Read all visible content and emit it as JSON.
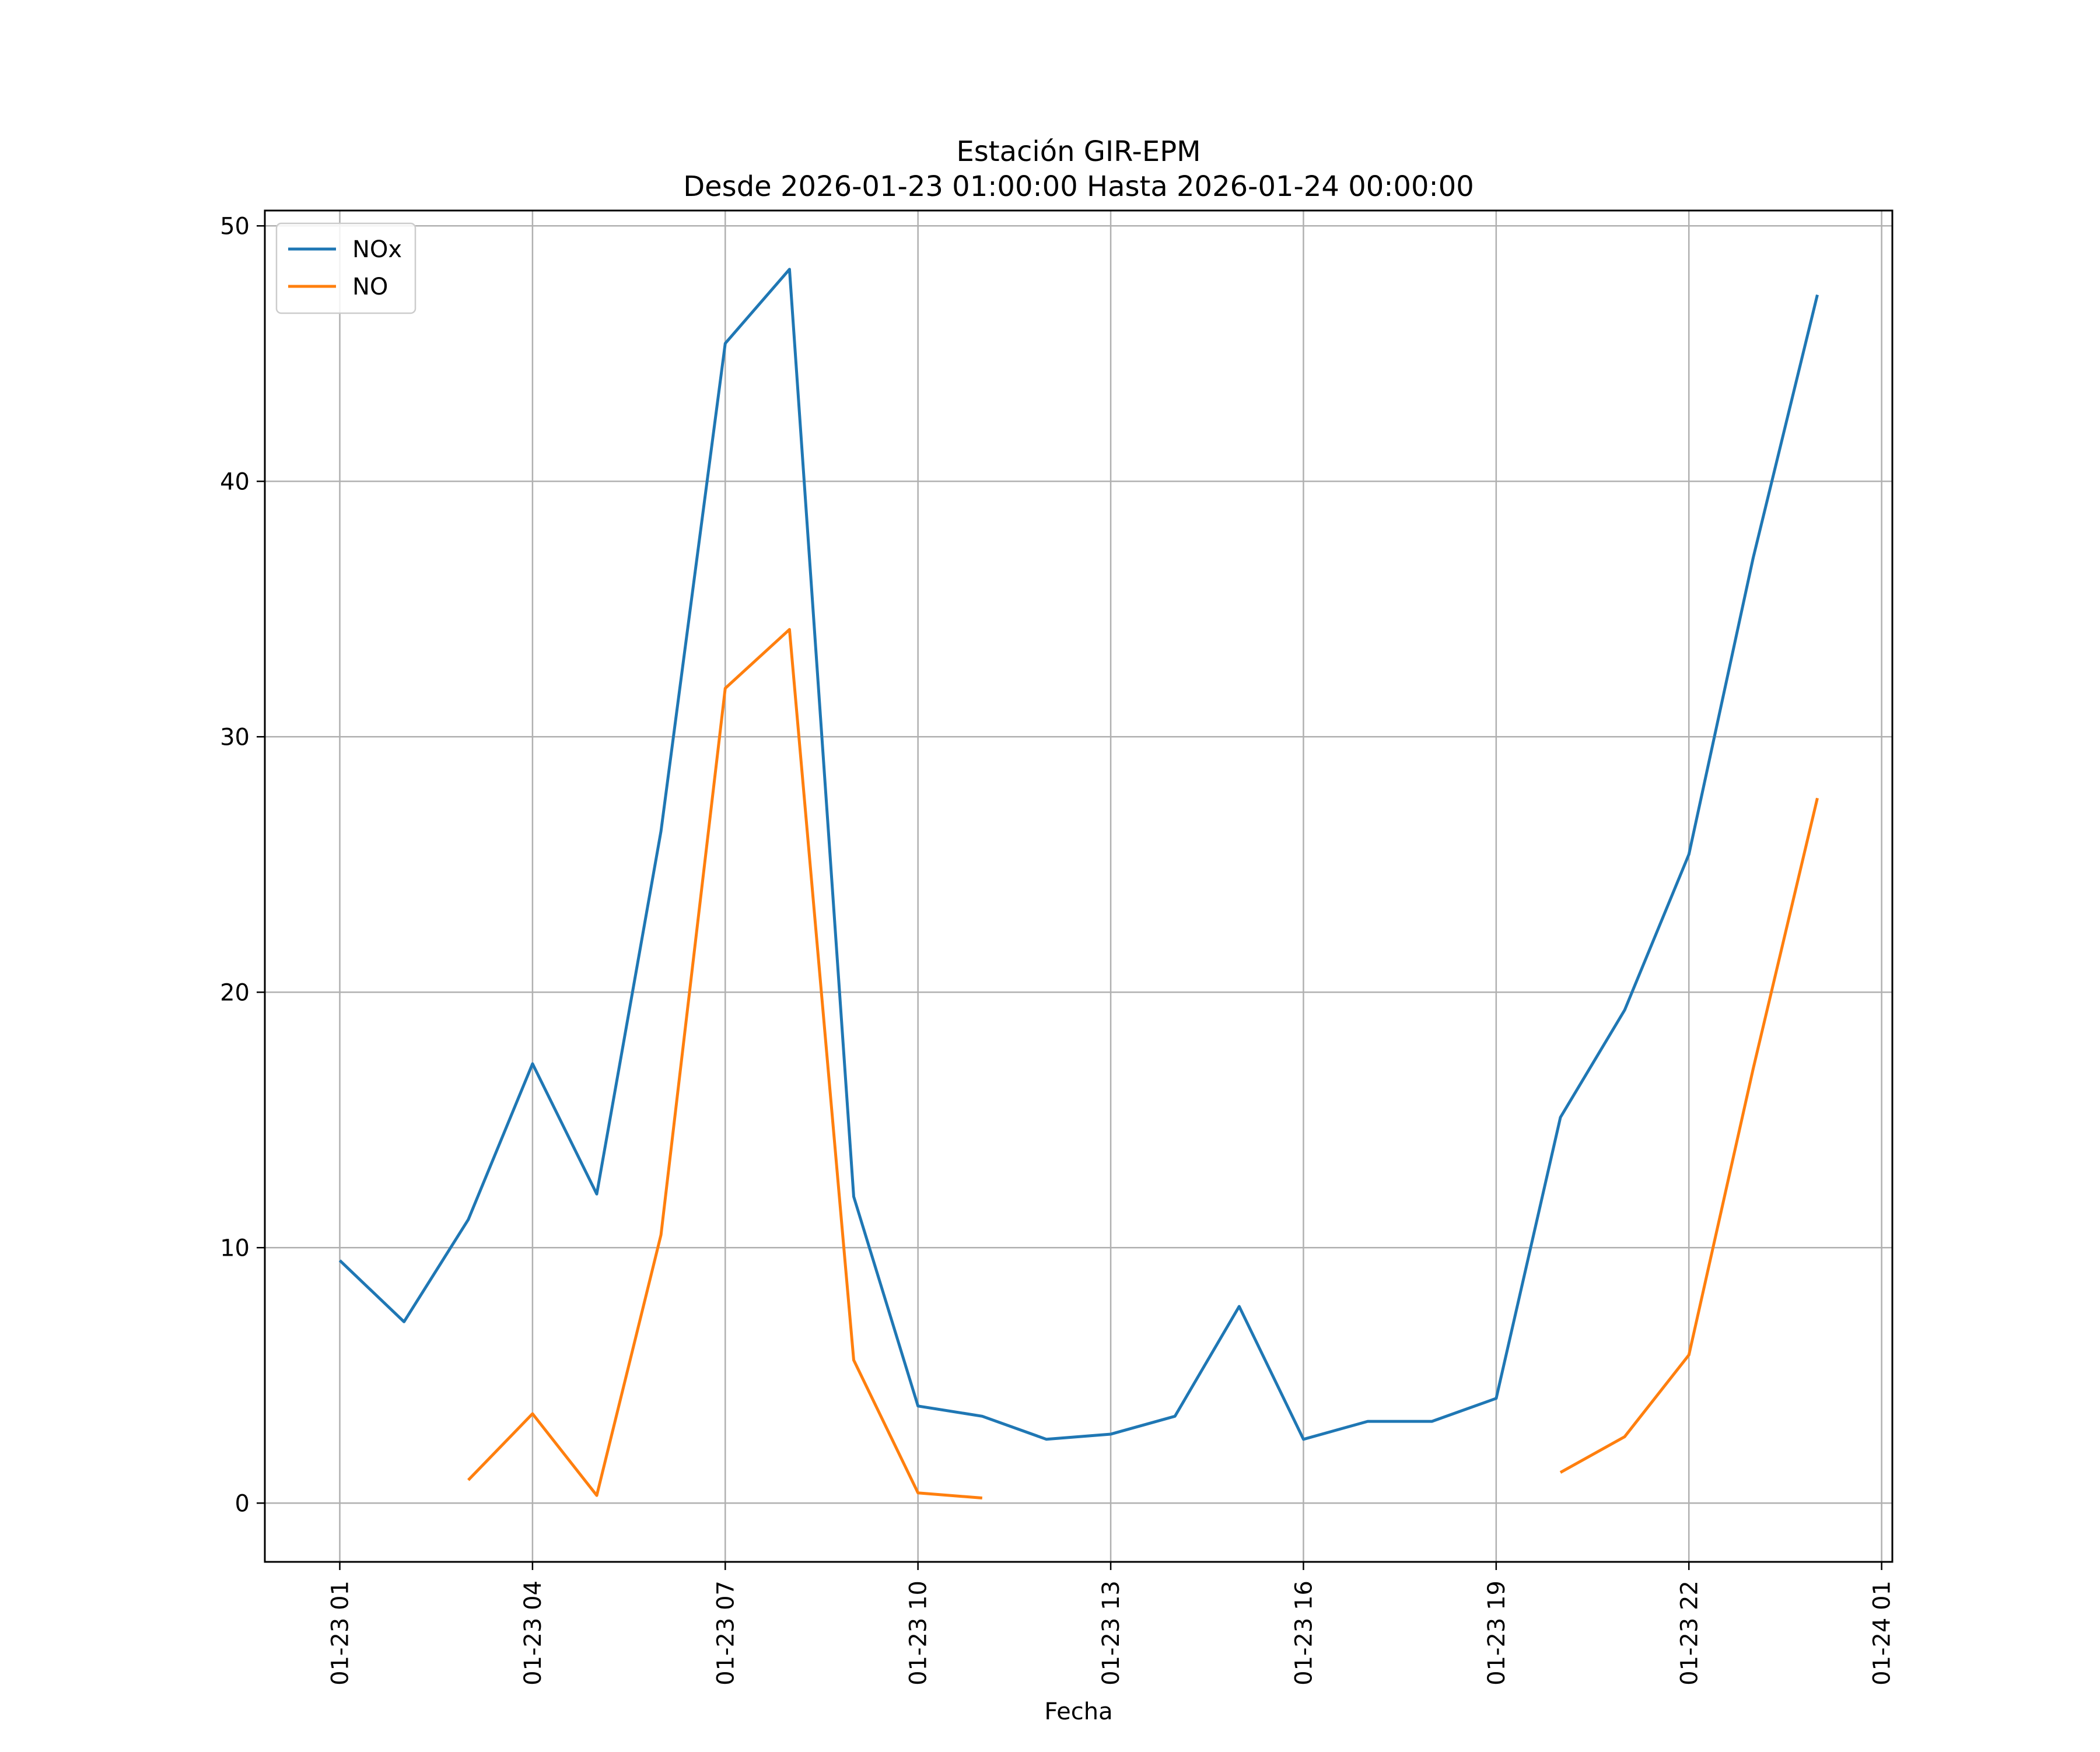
{
  "chart_data": {
    "type": "line",
    "title_line1": "Estación GIR-EPM",
    "title_line2": "Desde 2026-01-23 01:00:00 Hasta 2026-01-24 00:00:00",
    "xlabel": "Fecha",
    "ylabel": "",
    "xlim": [
      "2026-01-22 23:50",
      "2026-01-24 01:10"
    ],
    "ylim": [
      -2.3,
      50.6
    ],
    "x_ticks": [
      "2026-01-23 01:00",
      "2026-01-23 04:00",
      "2026-01-23 07:00",
      "2026-01-23 10:00",
      "2026-01-23 13:00",
      "2026-01-23 16:00",
      "2026-01-23 19:00",
      "2026-01-23 22:00",
      "2026-01-24 01:00"
    ],
    "x_tick_labels": [
      "01-23 01",
      "01-23 04",
      "01-23 07",
      "01-23 10",
      "01-23 13",
      "01-23 16",
      "01-23 19",
      "01-23 22",
      "01-24 01"
    ],
    "y_ticks": [
      0,
      10,
      20,
      30,
      40,
      50
    ],
    "y_tick_labels": [
      "0",
      "10",
      "20",
      "30",
      "40",
      "50"
    ],
    "grid": true,
    "legend_position": "top-left",
    "x": [
      "2026-01-23 01:00",
      "2026-01-23 02:00",
      "2026-01-23 03:00",
      "2026-01-23 04:00",
      "2026-01-23 05:00",
      "2026-01-23 06:00",
      "2026-01-23 07:00",
      "2026-01-23 08:00",
      "2026-01-23 09:00",
      "2026-01-23 10:00",
      "2026-01-23 11:00",
      "2026-01-23 12:00",
      "2026-01-23 13:00",
      "2026-01-23 14:00",
      "2026-01-23 15:00",
      "2026-01-23 16:00",
      "2026-01-23 17:00",
      "2026-01-23 18:00",
      "2026-01-23 19:00",
      "2026-01-23 20:00",
      "2026-01-23 21:00",
      "2026-01-23 22:00",
      "2026-01-23 23:00",
      "2026-01-24 00:00"
    ],
    "series": [
      {
        "name": "NOx",
        "color": "#1f77b4",
        "values": [
          9.5,
          7.1,
          11.1,
          17.2,
          12.1,
          26.3,
          45.4,
          48.3,
          12.0,
          3.8,
          3.4,
          2.5,
          2.7,
          3.4,
          7.7,
          2.5,
          3.2,
          3.2,
          4.1,
          15.1,
          19.3,
          25.4,
          37.0,
          47.3
        ]
      },
      {
        "name": "NO",
        "color": "#ff7f0e",
        "values": [
          null,
          null,
          0.9,
          3.5,
          0.3,
          10.5,
          31.9,
          34.2,
          5.6,
          0.4,
          0.2,
          null,
          null,
          null,
          null,
          null,
          null,
          null,
          null,
          1.2,
          2.6,
          5.8,
          17.0,
          27.6
        ]
      }
    ]
  }
}
